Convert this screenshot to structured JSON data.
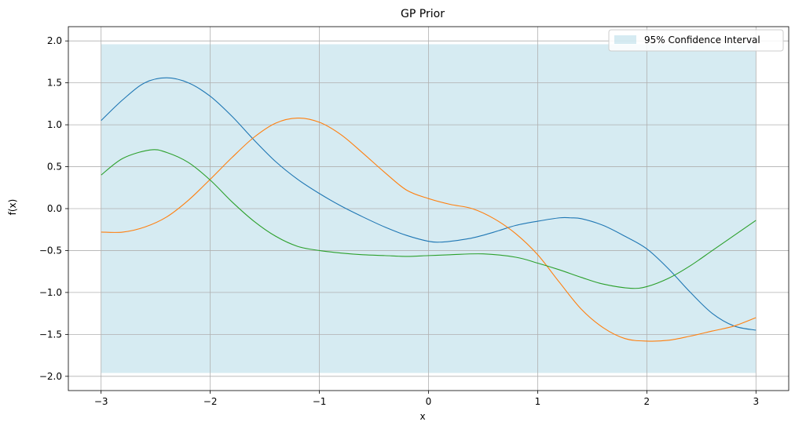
{
  "chart_data": {
    "type": "line",
    "title": "GP Prior",
    "xlabel": "x",
    "ylabel": "f(x)",
    "xlim": [
      -3.3,
      3.3
    ],
    "ylim": [
      -2.17,
      2.17
    ],
    "xticks": [
      -3,
      -2,
      -1,
      0,
      1,
      2,
      3
    ],
    "xtick_labels": [
      "−3",
      "−2",
      "−1",
      "0",
      "1",
      "2",
      "3"
    ],
    "yticks": [
      -2.0,
      -1.5,
      -1.0,
      -0.5,
      0.0,
      0.5,
      1.0,
      1.5,
      2.0
    ],
    "ytick_labels": [
      "−2.0",
      "−1.5",
      "−1.0",
      "−0.5",
      "0.0",
      "0.5",
      "1.0",
      "1.5",
      "2.0"
    ],
    "grid": true,
    "legend": {
      "placement": "top-right",
      "entries": [
        "95% Confidence Interval"
      ]
    },
    "band": {
      "label": "95% Confidence Interval",
      "x": [
        -3,
        3
      ],
      "lower": -1.96,
      "upper": 1.96,
      "color": "#add8e6"
    },
    "series": [
      {
        "color": "#1f77b4",
        "x": [
          -3.0,
          -2.8,
          -2.6,
          -2.4,
          -2.2,
          -2.0,
          -1.8,
          -1.6,
          -1.4,
          -1.2,
          -1.0,
          -0.8,
          -0.6,
          -0.4,
          -0.2,
          0.0,
          0.1,
          0.2,
          0.4,
          0.6,
          0.8,
          1.0,
          1.2,
          1.3,
          1.4,
          1.6,
          1.8,
          2.0,
          2.2,
          2.4,
          2.6,
          2.8,
          3.0
        ],
        "y": [
          1.05,
          1.3,
          1.5,
          1.56,
          1.5,
          1.34,
          1.1,
          0.82,
          0.56,
          0.35,
          0.18,
          0.03,
          -0.1,
          -0.22,
          -0.32,
          -0.39,
          -0.4,
          -0.39,
          -0.35,
          -0.28,
          -0.2,
          -0.15,
          -0.11,
          -0.11,
          -0.12,
          -0.2,
          -0.33,
          -0.48,
          -0.72,
          -1.0,
          -1.25,
          -1.4,
          -1.45
        ]
      },
      {
        "color": "#ff7f0e",
        "x": [
          -3.0,
          -2.8,
          -2.6,
          -2.4,
          -2.2,
          -2.0,
          -1.8,
          -1.6,
          -1.4,
          -1.2,
          -1.0,
          -0.8,
          -0.6,
          -0.4,
          -0.2,
          0.0,
          0.2,
          0.4,
          0.6,
          0.8,
          1.0,
          1.2,
          1.4,
          1.6,
          1.8,
          2.0,
          2.2,
          2.4,
          2.6,
          2.8,
          3.0
        ],
        "y": [
          -0.28,
          -0.28,
          -0.22,
          -0.1,
          0.1,
          0.35,
          0.61,
          0.85,
          1.02,
          1.08,
          1.03,
          0.88,
          0.66,
          0.43,
          0.22,
          0.12,
          0.05,
          0.0,
          -0.12,
          -0.3,
          -0.55,
          -0.88,
          -1.2,
          -1.42,
          -1.55,
          -1.58,
          -1.57,
          -1.52,
          -1.46,
          -1.4,
          -1.3
        ]
      },
      {
        "color": "#2ca02c",
        "x": [
          -3.0,
          -2.8,
          -2.55,
          -2.4,
          -2.2,
          -2.0,
          -1.8,
          -1.6,
          -1.4,
          -1.2,
          -1.0,
          -0.8,
          -0.6,
          -0.4,
          -0.2,
          0.0,
          0.2,
          0.5,
          0.8,
          1.0,
          1.2,
          1.4,
          1.6,
          1.85,
          2.0,
          2.2,
          2.4,
          2.6,
          2.8,
          3.0
        ],
        "y": [
          0.4,
          0.6,
          0.7,
          0.67,
          0.55,
          0.34,
          0.08,
          -0.15,
          -0.33,
          -0.45,
          -0.5,
          -0.53,
          -0.55,
          -0.56,
          -0.57,
          -0.56,
          -0.55,
          -0.54,
          -0.58,
          -0.65,
          -0.73,
          -0.82,
          -0.9,
          -0.95,
          -0.93,
          -0.83,
          -0.68,
          -0.5,
          -0.32,
          -0.14
        ]
      }
    ]
  }
}
